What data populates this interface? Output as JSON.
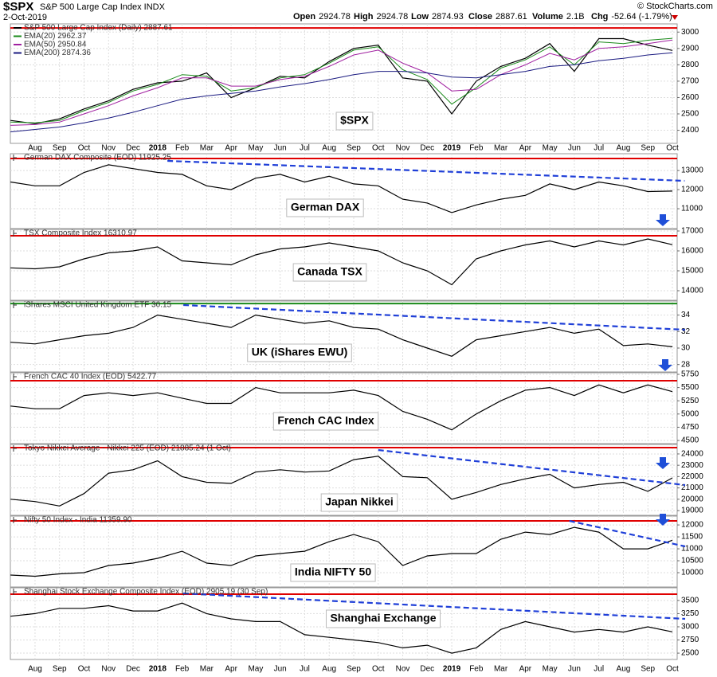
{
  "chart_data": [
    {
      "type": "line",
      "symbol": "$SPX",
      "name": "S&P 500 Large Cap Index INDX",
      "date": "2-Oct-2019",
      "credit": "© StockCharts.com",
      "quote": [
        {
          "label": "Open",
          "value": "2924.78"
        },
        {
          "label": "High",
          "value": "2924.78"
        },
        {
          "label": "Low",
          "value": "2874.93"
        },
        {
          "label": "Close",
          "value": "2887.61"
        },
        {
          "label": "Volume",
          "value": "2.1B"
        },
        {
          "label": "Chg",
          "value": "-52.64 (-1.79%)"
        }
      ],
      "label": "$SPX",
      "categories": [
        null,
        "Aug",
        "Sep",
        "Oct",
        "Nov",
        "Dec",
        "2018",
        "Feb",
        "Mar",
        "Apr",
        "May",
        "Jun",
        "Jul",
        "Aug",
        "Sep",
        "Oct",
        "Nov",
        "Dec",
        "2019",
        "Feb",
        "Mar",
        "Apr",
        "May",
        "Jun",
        "Jul",
        "Aug",
        "Sep",
        "Oct"
      ],
      "series": [
        {
          "name": "S&P 500 Large Cap Index (Daily) 2887.61",
          "color": "#000000",
          "values": [
            2460,
            2440,
            2470,
            2530,
            2580,
            2650,
            2690,
            2700,
            2750,
            2600,
            2660,
            2730,
            2720,
            2820,
            2900,
            2920,
            2720,
            2700,
            2500,
            2700,
            2790,
            2840,
            2930,
            2760,
            2960,
            2960,
            2920,
            2888
          ]
        },
        {
          "name": "EMA(20) 2962.37",
          "color": "#1a8a1a",
          "values": [
            2450,
            2445,
            2460,
            2520,
            2570,
            2640,
            2680,
            2740,
            2730,
            2640,
            2660,
            2720,
            2740,
            2810,
            2890,
            2910,
            2770,
            2710,
            2560,
            2660,
            2780,
            2830,
            2910,
            2800,
            2940,
            2930,
            2950,
            2962
          ]
        },
        {
          "name": "EMA(50) 2950.84",
          "color": "#a020a0",
          "values": [
            2430,
            2435,
            2450,
            2500,
            2550,
            2610,
            2660,
            2720,
            2720,
            2670,
            2670,
            2710,
            2730,
            2790,
            2860,
            2890,
            2810,
            2750,
            2640,
            2650,
            2740,
            2800,
            2870,
            2830,
            2900,
            2910,
            2930,
            2951
          ]
        },
        {
          "name": "EMA(200) 2874.36",
          "color": "#1a1a80",
          "values": [
            2390,
            2405,
            2420,
            2445,
            2475,
            2510,
            2550,
            2590,
            2610,
            2625,
            2640,
            2665,
            2685,
            2710,
            2740,
            2760,
            2760,
            2750,
            2725,
            2720,
            2740,
            2760,
            2790,
            2800,
            2825,
            2840,
            2860,
            2874
          ]
        }
      ],
      "ylim": [
        2320,
        3050
      ],
      "yticks": [
        2400,
        2500,
        2600,
        2700,
        2800,
        2900,
        3000
      ],
      "grid": true,
      "hlines": [
        {
          "value": 3025,
          "color": "#e00000"
        }
      ]
    },
    {
      "type": "line",
      "label": "German DAX",
      "categories": [
        null,
        "Aug",
        "Sep",
        "Oct",
        "Nov",
        "Dec",
        "2018",
        "Feb",
        "Mar",
        "Apr",
        "May",
        "Jun",
        "Jul",
        "Aug",
        "Sep",
        "Oct",
        "Nov",
        "Dec",
        "2019",
        "Feb",
        "Mar",
        "Apr",
        "May",
        "Jun",
        "Jul",
        "Aug",
        "Sep",
        "Oct"
      ],
      "series": [
        {
          "name": "German DAX Composite (EOD) 11925.25",
          "color": "#000000",
          "values": [
            12400,
            12200,
            12200,
            12900,
            13300,
            13100,
            12900,
            12800,
            12200,
            12000,
            12600,
            12800,
            12400,
            12700,
            12300,
            12200,
            11500,
            11300,
            10800,
            11200,
            11500,
            11700,
            12300,
            12000,
            12400,
            12200,
            11900,
            11925
          ]
        }
      ],
      "ylim": [
        9960,
        13880
      ],
      "yticks": [
        11000,
        12000,
        13000
      ],
      "grid": true,
      "hlines": [
        {
          "value": 13630,
          "color": "#e00000"
        }
      ],
      "trendline": {
        "x": [
          6.4,
          27.5
        ],
        "y": [
          13505,
          12460
        ],
        "color": "#1f3fd8"
      }
    },
    {
      "type": "line",
      "label": "Canada TSX",
      "categories": [
        null,
        "Aug",
        "Sep",
        "Oct",
        "Nov",
        "Dec",
        "2018",
        "Feb",
        "Mar",
        "Apr",
        "May",
        "Jun",
        "Jul",
        "Aug",
        "Sep",
        "Oct",
        "Nov",
        "Dec",
        "2019",
        "Feb",
        "Mar",
        "Apr",
        "May",
        "Jun",
        "Jul",
        "Aug",
        "Sep",
        "Oct"
      ],
      "series": [
        {
          "name": "TSX Composite Index 16310.97",
          "color": "#000000",
          "values": [
            15150,
            15100,
            15200,
            15600,
            15900,
            16000,
            16200,
            15500,
            15400,
            15300,
            15800,
            16100,
            16200,
            16400,
            16200,
            16000,
            15400,
            15000,
            14300,
            15600,
            16000,
            16300,
            16500,
            16200,
            16500,
            16300,
            16600,
            16311
          ]
        }
      ],
      "ylim": [
        13520,
        17080
      ],
      "yticks": [
        14000,
        15000,
        16000,
        17000
      ],
      "grid": true,
      "hlines": [
        {
          "value": 16760,
          "color": "#e00000"
        }
      ]
    },
    {
      "type": "line",
      "label": "UK (iShares EWU)",
      "categories": [
        null,
        "Aug",
        "Sep",
        "Oct",
        "Nov",
        "Dec",
        "2018",
        "Feb",
        "Mar",
        "Apr",
        "May",
        "Jun",
        "Jul",
        "Aug",
        "Sep",
        "Oct",
        "Nov",
        "Dec",
        "2019",
        "Feb",
        "Mar",
        "Apr",
        "May",
        "Jun",
        "Jul",
        "Aug",
        "Sep",
        "Oct"
      ],
      "series": [
        {
          "name": "iShares MSCI United Kingdom ETF 30.15",
          "color": "#000000",
          "values": [
            30.7,
            30.5,
            31,
            31.5,
            31.8,
            32.5,
            34,
            33.5,
            33,
            32.5,
            34,
            33.5,
            33,
            33.3,
            32.5,
            32.3,
            31,
            30,
            29,
            31,
            31.5,
            32,
            32.5,
            31.8,
            32.3,
            30.3,
            30.5,
            30.15
          ]
        }
      ],
      "ylim": [
        27.1,
        35.7
      ],
      "yticks": [
        28,
        30,
        32,
        34
      ],
      "grid": true,
      "hlines": [
        {
          "value": 35.4,
          "color": "#1a8a1a"
        }
      ],
      "trendline": {
        "x": [
          7.05,
          27.52
        ],
        "y": [
          35.22,
          32.22
        ],
        "color": "#1f3fd8"
      }
    },
    {
      "type": "line",
      "label": "French CAC Index",
      "categories": [
        null,
        "Aug",
        "Sep",
        "Oct",
        "Nov",
        "Dec",
        "2018",
        "Feb",
        "Mar",
        "Apr",
        "May",
        "Jun",
        "Jul",
        "Aug",
        "Sep",
        "Oct",
        "Nov",
        "Dec",
        "2019",
        "Feb",
        "Mar",
        "Apr",
        "May",
        "Jun",
        "Jul",
        "Aug",
        "Sep",
        "Oct"
      ],
      "series": [
        {
          "name": "French CAC 40 Index (EOD) 5422.77",
          "color": "#000000",
          "values": [
            5150,
            5100,
            5100,
            5350,
            5400,
            5350,
            5400,
            5300,
            5200,
            5200,
            5500,
            5400,
            5400,
            5400,
            5450,
            5350,
            5050,
            4900,
            4700,
            5000,
            5250,
            5450,
            5500,
            5350,
            5550,
            5400,
            5550,
            5423
          ]
        }
      ],
      "ylim": [
        4440,
        5780
      ],
      "yticks": [
        4500,
        4750,
        5000,
        5250,
        5500,
        5750
      ],
      "grid": true,
      "hlines": [
        {
          "value": 5630,
          "color": "#e00000"
        }
      ]
    },
    {
      "type": "line",
      "label": "Japan Nikkei",
      "categories": [
        null,
        "Aug",
        "Sep",
        "Oct",
        "Nov",
        "Dec",
        "2018",
        "Feb",
        "Mar",
        "Apr",
        "May",
        "Jun",
        "Jul",
        "Aug",
        "Sep",
        "Oct",
        "Nov",
        "Dec",
        "2019",
        "Feb",
        "Mar",
        "Apr",
        "May",
        "Jun",
        "Jul",
        "Aug",
        "Sep",
        "Oct"
      ],
      "series": [
        {
          "name": "Tokyo Nikkei Average - Nikkei 225 (EOD) 21885.24 (1 Oct)",
          "color": "#000000",
          "values": [
            20000,
            19800,
            19400,
            20500,
            22300,
            22600,
            23400,
            22000,
            21500,
            21400,
            22400,
            22600,
            22400,
            22500,
            23500,
            23800,
            22000,
            21900,
            20000,
            20600,
            21300,
            21800,
            22200,
            21000,
            21300,
            21500,
            20700,
            21885
          ]
        }
      ],
      "ylim": [
        18580,
        24840
      ],
      "yticks": [
        19000,
        20000,
        21000,
        22000,
        23000,
        24000
      ],
      "grid": true,
      "hlines": [
        {
          "value": 24560,
          "color": "#e00000"
        }
      ],
      "trendline": {
        "x": [
          15.0,
          27.52
        ],
        "y": [
          24348,
          21253
        ],
        "color": "#1f3fd8"
      }
    },
    {
      "type": "line",
      "label": "India NIFTY 50",
      "categories": [
        null,
        "Aug",
        "Sep",
        "Oct",
        "Nov",
        "Dec",
        "2018",
        "Feb",
        "Mar",
        "Apr",
        "May",
        "Jun",
        "Jul",
        "Aug",
        "Sep",
        "Oct",
        "Nov",
        "Dec",
        "2019",
        "Feb",
        "Mar",
        "Apr",
        "May",
        "Jun",
        "Jul",
        "Aug",
        "Sep",
        "Oct"
      ],
      "series": [
        {
          "name": "Nifty 50 Index - India 11359.90",
          "color": "#000000",
          "values": [
            9900,
            9850,
            9950,
            10000,
            10300,
            10400,
            10600,
            10900,
            10400,
            10300,
            10700,
            10800,
            10900,
            11300,
            11600,
            11300,
            10300,
            10700,
            10800,
            10800,
            11400,
            11700,
            11600,
            11900,
            11700,
            11000,
            11000,
            11360
          ]
        }
      ],
      "ylim": [
        9400,
        12370
      ],
      "yticks": [
        10000,
        10500,
        11000,
        11500,
        12000
      ],
      "grid": true,
      "hlines": [
        {
          "value": 12170,
          "color": "#e00000"
        }
      ],
      "trendline": {
        "x": [
          22.8,
          27.52
        ],
        "y": [
          12170,
          11102
        ],
        "color": "#1f3fd8"
      }
    },
    {
      "type": "line",
      "label": "Shanghai Exchange",
      "categories": [
        null,
        "Aug",
        "Sep",
        "Oct",
        "Nov",
        "Dec",
        "2018",
        "Feb",
        "Mar",
        "Apr",
        "May",
        "Jun",
        "Jul",
        "Aug",
        "Sep",
        "Oct",
        "Nov",
        "Dec",
        "2019",
        "Feb",
        "Mar",
        "Apr",
        "May",
        "Jun",
        "Jul",
        "Aug",
        "Sep",
        "Oct"
      ],
      "series": [
        {
          "name": "Shanghai Stock Exchange Composite Index (EOD) 2905.19 (30 Sep)",
          "color": "#000000",
          "values": [
            3200,
            3250,
            3350,
            3350,
            3400,
            3300,
            3300,
            3450,
            3250,
            3150,
            3100,
            3100,
            2850,
            2800,
            2750,
            2700,
            2600,
            2650,
            2500,
            2600,
            2950,
            3100,
            3000,
            2900,
            2950,
            2900,
            3000,
            2905
          ]
        }
      ],
      "ylim": [
        2380,
        3740
      ],
      "yticks": [
        2500,
        2750,
        3000,
        3250,
        3500
      ],
      "grid": true,
      "hlines": [
        {
          "value": 3620,
          "color": "#e00000"
        }
      ],
      "trendline": {
        "x": [
          7.05,
          27.52
        ],
        "y": [
          3634,
          3151
        ],
        "color": "#1f3fd8"
      }
    }
  ]
}
